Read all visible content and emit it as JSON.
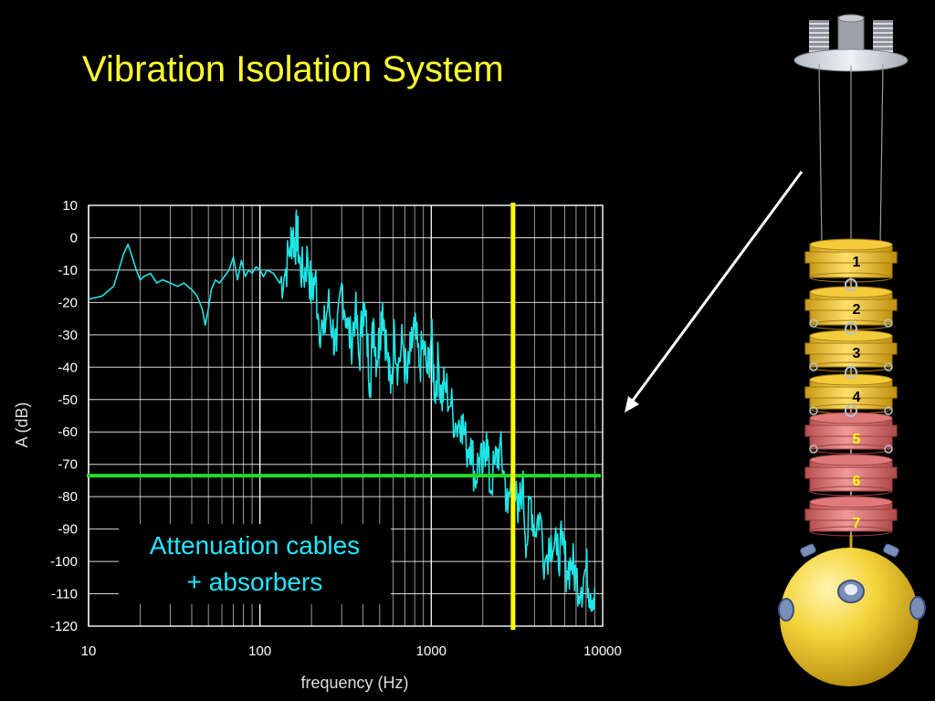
{
  "title": "Vibration Isolation System",
  "annotation": {
    "line1": "Attenuation cables",
    "line2": "+ absorbers"
  },
  "apparatus": {
    "stage_labels": [
      "1",
      "2",
      "3",
      "4",
      "5",
      "6",
      "7"
    ],
    "stage_label_colors": [
      "#000000",
      "#000000",
      "#000000",
      "#000000",
      "#ffff00",
      "#ffff00",
      "#ffff00"
    ],
    "upper_stage_color": "#f2cc3a",
    "lower_stage_color": "#e07a7a",
    "sphere_color": "#f4d43a"
  },
  "chart_data": {
    "type": "line",
    "title": "",
    "xlabel": "frequency (Hz)",
    "ylabel": "A (dB)",
    "xscale": "log",
    "xlim": [
      10,
      10000
    ],
    "ylim": [
      -120,
      10
    ],
    "xticks": [
      10,
      100,
      1000,
      10000
    ],
    "yticks": [
      10,
      0,
      -10,
      -20,
      -30,
      -40,
      -50,
      -60,
      -70,
      -80,
      -90,
      -100,
      -110,
      -120
    ],
    "grid": true,
    "series_color": "#1ee6e6",
    "series": [
      {
        "x": [
          10,
          12,
          14,
          15,
          16,
          17,
          18,
          19,
          20,
          21,
          23,
          25,
          27,
          30,
          33,
          36,
          40,
          43,
          46,
          48,
          50,
          52,
          55,
          58,
          62,
          66,
          70,
          74,
          78,
          82,
          86,
          90,
          95,
          100,
          105,
          110,
          120,
          130,
          140,
          150,
          155,
          160,
          165,
          170,
          180,
          190,
          200,
          210,
          220,
          235,
          250,
          265,
          280,
          300,
          320,
          340,
          360,
          380,
          400,
          420,
          440,
          460,
          480,
          500,
          520,
          550,
          580,
          610,
          640,
          680,
          720,
          760,
          800,
          850,
          900,
          950,
          1000,
          1050,
          1100,
          1150,
          1200,
          1300,
          1400,
          1500,
          1600,
          1700,
          1800,
          1900,
          2000,
          2100,
          2200,
          2350,
          2500,
          2650,
          2800,
          3000,
          3200,
          3400,
          3600,
          3800,
          4000,
          4300,
          4600,
          5000,
          5400,
          5800,
          6200,
          6600,
          7000,
          7500,
          8000,
          8500,
          9000
        ],
        "y": [
          -19,
          -18,
          -15,
          -10,
          -5,
          -2,
          -6,
          -10,
          -13,
          -12,
          -11,
          -14,
          -13,
          -14,
          -15,
          -14,
          -16,
          -18,
          -22,
          -27,
          -22,
          -16,
          -13,
          -14,
          -12,
          -10,
          -6,
          -13,
          -7,
          -12,
          -10,
          -11,
          -9,
          -10,
          -12,
          -10,
          -11,
          -14,
          -11,
          -3,
          2,
          -3,
          3,
          -8,
          -12,
          -6,
          -18,
          -12,
          -25,
          -30,
          -20,
          -28,
          -35,
          -14,
          -25,
          -33,
          -22,
          -38,
          -20,
          -30,
          -45,
          -25,
          -38,
          -30,
          -20,
          -35,
          -48,
          -28,
          -40,
          -32,
          -45,
          -35,
          -28,
          -40,
          -33,
          -42,
          -30,
          -48,
          -38,
          -50,
          -45,
          -52,
          -58,
          -55,
          -65,
          -62,
          -75,
          -68,
          -72,
          -60,
          -78,
          -70,
          -65,
          -72,
          -85,
          -70,
          -88,
          -75,
          -95,
          -80,
          -90,
          -85,
          -100,
          -92,
          -98,
          -95,
          -103,
          -100,
          -105,
          -108,
          -102,
          -110,
          -108
        ]
      }
    ],
    "reference_lines": [
      {
        "orientation": "horizontal",
        "value": -73.5,
        "color": "#22dd22"
      },
      {
        "orientation": "vertical",
        "value": 3000,
        "color": "#ffff00"
      }
    ]
  }
}
